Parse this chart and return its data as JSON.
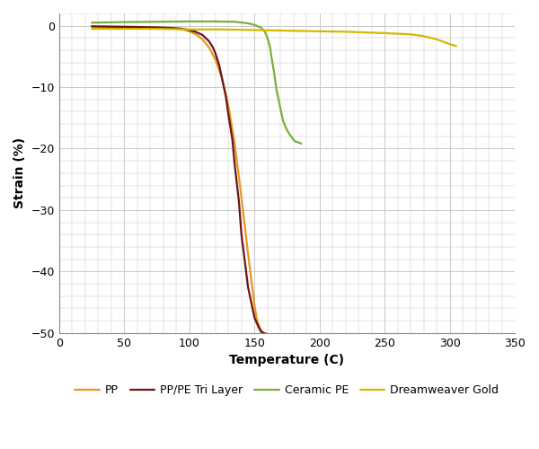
{
  "title": "",
  "xlabel": "Temperature (C)",
  "ylabel": "Strain (%)",
  "xlim": [
    0,
    350
  ],
  "ylim": [
    -50,
    2
  ],
  "xticks": [
    0,
    50,
    100,
    150,
    200,
    250,
    300,
    350
  ],
  "yticks": [
    0,
    -10,
    -20,
    -30,
    -40,
    -50
  ],
  "series": [
    {
      "label": "PP",
      "color": "#E8971E",
      "x": [
        25,
        40,
        60,
        75,
        85,
        95,
        100,
        105,
        110,
        115,
        120,
        125,
        130,
        135,
        140,
        145,
        148,
        150,
        152,
        155,
        157,
        160,
        162
      ],
      "y": [
        -0.1,
        -0.15,
        -0.2,
        -0.3,
        -0.4,
        -0.6,
        -0.9,
        -1.4,
        -2.2,
        -3.5,
        -5.5,
        -8.5,
        -13.0,
        -19.5,
        -28.0,
        -37.0,
        -42.0,
        -45.5,
        -48.0,
        -49.5,
        -50.0,
        -50.2,
        -50.3
      ]
    },
    {
      "label": "PP/PE Tri Layer",
      "color": "#6B1515",
      "x": [
        25,
        40,
        60,
        80,
        90,
        95,
        100,
        105,
        110,
        115,
        118,
        120,
        123,
        125,
        128,
        130,
        133,
        135,
        138,
        140,
        143,
        145,
        148,
        150,
        153,
        155,
        158,
        160,
        163,
        165
      ],
      "y": [
        -0.1,
        -0.15,
        -0.2,
        -0.3,
        -0.4,
        -0.5,
        -0.7,
        -1.0,
        -1.5,
        -2.5,
        -3.5,
        -4.5,
        -6.5,
        -8.5,
        -11.5,
        -14.5,
        -18.5,
        -23.0,
        -28.5,
        -34.0,
        -39.0,
        -42.5,
        -45.5,
        -47.5,
        -49.0,
        -49.8,
        -50.1,
        -50.2,
        -50.3,
        -50.3
      ]
    },
    {
      "label": "Ceramic PE",
      "color": "#7AAF3A",
      "x": [
        25,
        50,
        75,
        100,
        120,
        135,
        145,
        150,
        155,
        158,
        160,
        162,
        163,
        165,
        167,
        170,
        172,
        175,
        178,
        181,
        184,
        186
      ],
      "y": [
        0.5,
        0.6,
        0.65,
        0.7,
        0.7,
        0.65,
        0.4,
        0.15,
        -0.3,
        -1.0,
        -2.0,
        -3.5,
        -5.0,
        -7.5,
        -10.5,
        -13.5,
        -15.5,
        -17.0,
        -18.0,
        -18.8,
        -19.0,
        -19.2
      ]
    },
    {
      "label": "Dreamweaver Gold",
      "color": "#D4B800",
      "x": [
        25,
        50,
        75,
        100,
        125,
        150,
        175,
        200,
        225,
        250,
        270,
        280,
        290,
        295,
        300,
        305
      ],
      "y": [
        -0.5,
        -0.5,
        -0.5,
        -0.6,
        -0.6,
        -0.7,
        -0.8,
        -0.9,
        -1.0,
        -1.2,
        -1.4,
        -1.7,
        -2.2,
        -2.6,
        -3.0,
        -3.3
      ]
    }
  ],
  "legend_fontsize": 9,
  "grid_color": "#c8c8c8",
  "background_color": "#ffffff",
  "xlabel_fontsize": 10,
  "ylabel_fontsize": 10,
  "tick_labelsize": 9
}
